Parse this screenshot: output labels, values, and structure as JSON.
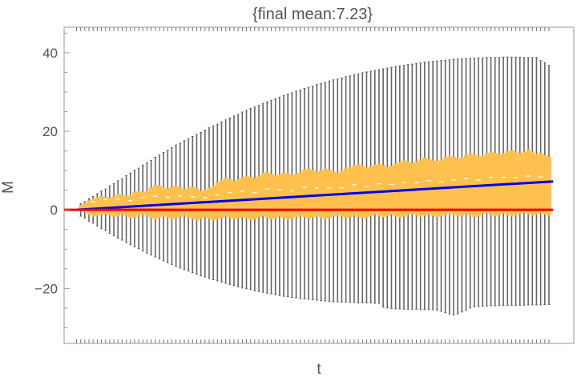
{
  "chart_data": {
    "type": "box",
    "title": "{final mean:7.23}",
    "xlabel": "t",
    "ylabel": "M",
    "ylim": [
      -34,
      46.5
    ],
    "xlim": [
      -3,
      120
    ],
    "yticks": [
      -20,
      0,
      20,
      40
    ],
    "ytick_labels": [
      "−20",
      "0",
      "20",
      "40"
    ],
    "grid": false,
    "legend": "none",
    "n_steps": 115,
    "whisker_max": [
      0.0,
      1.6,
      2.1,
      2.9,
      3.4,
      4.1,
      4.8,
      5.3,
      6.1,
      6.7,
      7.4,
      7.9,
      8.7,
      9.4,
      10.1,
      10.6,
      11.4,
      12.0,
      12.6,
      13.4,
      14.0,
      14.6,
      15.2,
      15.8,
      16.5,
      17.0,
      17.6,
      18.1,
      18.7,
      19.2,
      19.7,
      20.3,
      20.9,
      21.4,
      21.8,
      22.4,
      22.9,
      23.4,
      23.9,
      24.3,
      24.9,
      25.3,
      25.8,
      26.2,
      26.6,
      27.1,
      27.5,
      27.9,
      28.3,
      28.7,
      29.1,
      29.5,
      29.8,
      30.2,
      30.5,
      30.9,
      31.2,
      31.5,
      31.9,
      32.2,
      32.4,
      32.8,
      33.1,
      33.3,
      33.6,
      33.9,
      34.1,
      34.4,
      34.6,
      34.9,
      35.1,
      35.3,
      35.5,
      35.7,
      35.9,
      36.1,
      36.3,
      36.5,
      36.7,
      36.8,
      37.0,
      37.1,
      37.3,
      37.4,
      37.6,
      37.7,
      37.8,
      37.9,
      38.0,
      38.1,
      38.2,
      38.3,
      38.4,
      38.5,
      38.5,
      38.6,
      38.6,
      38.7,
      38.7,
      38.8,
      38.8,
      38.8,
      38.8,
      38.9,
      38.9,
      38.9,
      38.9,
      38.9,
      38.8,
      38.8,
      38.8,
      38.8,
      38.0,
      37.5,
      36.8
    ],
    "whisker_min": [
      0.0,
      -1.6,
      -2.1,
      -2.9,
      -3.4,
      -4.1,
      -4.8,
      -5.3,
      -6.0,
      -6.6,
      -7.2,
      -7.7,
      -8.3,
      -8.9,
      -9.4,
      -9.9,
      -10.5,
      -11.0,
      -11.5,
      -12.0,
      -12.5,
      -13.0,
      -13.5,
      -13.9,
      -14.4,
      -14.8,
      -15.2,
      -15.6,
      -16.0,
      -16.4,
      -16.8,
      -17.1,
      -17.5,
      -17.8,
      -18.1,
      -18.4,
      -18.7,
      -19.0,
      -19.3,
      -19.6,
      -19.9,
      -20.1,
      -20.3,
      -20.6,
      -20.8,
      -21.0,
      -21.2,
      -21.4,
      -21.6,
      -21.8,
      -22.0,
      -22.1,
      -22.3,
      -22.4,
      -22.6,
      -22.7,
      -22.8,
      -22.9,
      -23.0,
      -23.1,
      -23.2,
      -23.3,
      -23.4,
      -23.4,
      -23.5,
      -23.5,
      -23.6,
      -23.6,
      -23.7,
      -23.7,
      -23.7,
      -23.7,
      -23.8,
      -23.8,
      -24.8,
      -25.0,
      -25.1,
      -25.2,
      -25.2,
      -25.3,
      -25.3,
      -25.3,
      -25.3,
      -25.4,
      -25.4,
      -25.4,
      -25.4,
      -25.5,
      -25.8,
      -26.2,
      -26.5,
      -26.8,
      -26.5,
      -26.0,
      -25.5,
      -25.0,
      -24.7,
      -24.6,
      -24.5,
      -24.5,
      -24.4,
      -24.4,
      -24.4,
      -24.4,
      -24.3,
      -24.3,
      -24.3,
      -24.3,
      -24.3,
      -24.2,
      -24.2,
      -24.2,
      -24.2,
      -24.1,
      -24.1
    ],
    "box_upper": [
      0.0,
      1.2,
      1.8,
      2.4,
      2.8,
      3.1,
      3.5,
      3.3,
      3.1,
      3.4,
      4.0,
      3.8,
      3.5,
      3.7,
      4.5,
      4.8,
      4.5,
      4.9,
      5.7,
      6.3,
      6.2,
      5.7,
      5.4,
      5.9,
      6.2,
      5.8,
      5.2,
      5.6,
      5.9,
      5.4,
      4.8,
      5.0,
      5.6,
      6.2,
      7.0,
      7.7,
      8.1,
      7.8,
      7.3,
      7.7,
      8.3,
      8.7,
      8.4,
      8.1,
      8.6,
      9.4,
      9.6,
      9.2,
      8.7,
      9.0,
      9.5,
      9.3,
      8.9,
      9.1,
      9.6,
      10.3,
      10.5,
      10.1,
      9.6,
      9.9,
      10.5,
      10.2,
      9.7,
      9.5,
      9.9,
      10.5,
      10.9,
      11.3,
      11.6,
      11.2,
      10.7,
      11.0,
      11.5,
      11.8,
      11.4,
      10.9,
      11.2,
      11.8,
      12.1,
      12.6,
      12.3,
      11.9,
      12.3,
      12.9,
      13.3,
      13.0,
      12.6,
      12.4,
      12.8,
      13.4,
      13.8,
      13.5,
      13.1,
      13.3,
      13.9,
      14.3,
      14.0,
      13.6,
      13.9,
      14.4,
      14.8,
      14.5,
      14.1,
      14.4,
      14.9,
      15.2,
      14.9,
      14.4,
      14.8,
      15.3,
      14.8,
      14.2,
      14.5,
      14.0,
      13.5
    ],
    "box_lower": [
      0.0,
      -0.2,
      -0.6,
      -1.2,
      -1.7,
      -1.5,
      -1.2,
      -1.0,
      -1.4,
      -1.8,
      -1.5,
      -1.1,
      -1.6,
      -2.0,
      -1.8,
      -1.4,
      -1.1,
      -1.6,
      -2.1,
      -2.4,
      -2.0,
      -1.6,
      -2.0,
      -2.4,
      -2.1,
      -1.7,
      -1.4,
      -1.9,
      -2.3,
      -2.6,
      -2.3,
      -1.9,
      -2.3,
      -2.7,
      -2.4,
      -2.0,
      -1.6,
      -2.0,
      -2.4,
      -2.2,
      -1.8,
      -2.2,
      -2.6,
      -2.3,
      -1.9,
      -1.6,
      -2.0,
      -2.4,
      -2.1,
      -1.7,
      -2.1,
      -2.5,
      -2.2,
      -1.8,
      -1.4,
      -1.8,
      -2.2,
      -1.9,
      -1.5,
      -1.9,
      -2.3,
      -2.0,
      -1.6,
      -1.3,
      -1.7,
      -2.1,
      -1.8,
      -1.4,
      -1.8,
      -2.2,
      -1.9,
      -1.5,
      -1.1,
      -1.5,
      -1.9,
      -1.6,
      -1.2,
      -1.6,
      -2.0,
      -1.7,
      -1.3,
      -1.0,
      -1.4,
      -1.8,
      -1.5,
      -1.1,
      -1.5,
      -1.9,
      -1.6,
      -1.2,
      -0.9,
      -1.3,
      -1.7,
      -1.4,
      -1.0,
      -1.4,
      -1.8,
      -1.5,
      -1.1,
      -0.8,
      -1.2,
      -1.6,
      -1.3,
      -0.9,
      -1.3,
      -1.7,
      -1.4,
      -1.0,
      -0.7,
      -1.1,
      -1.5,
      -1.2,
      -0.8,
      -1.2,
      -1.4
    ],
    "series": [
      {
        "color": "#0000ee",
        "x": [
          0,
          115
        ],
        "y": [
          0,
          7.23
        ]
      },
      {
        "color": "#ee0000",
        "x": [
          -3,
          115
        ],
        "y": [
          0,
          0
        ]
      }
    ],
    "colors": {
      "box_fill": "#ffc04d",
      "whisker": "#666666",
      "frame": "#999999",
      "median": "#ffffff"
    }
  }
}
